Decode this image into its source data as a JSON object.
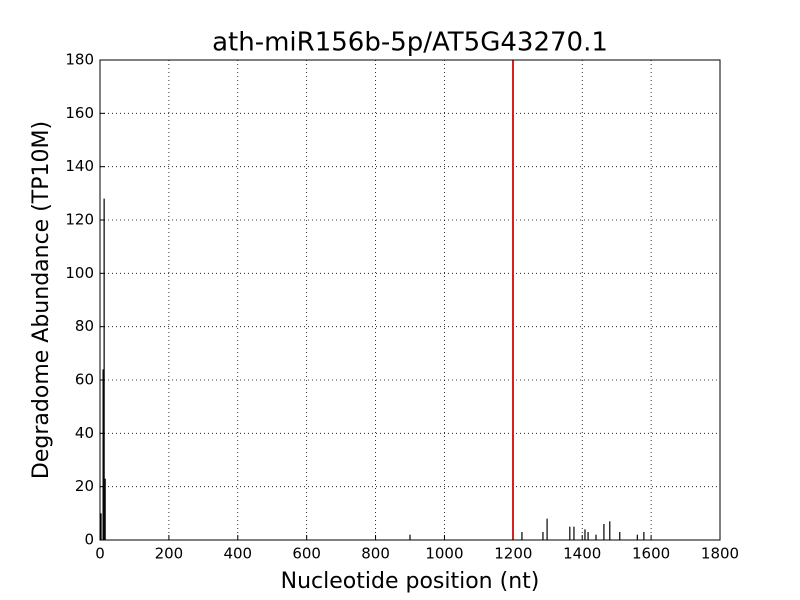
{
  "chart_data": {
    "type": "stem",
    "title": "ath-miR156b-5p/AT5G43270.1",
    "x_label": "Nucleotide position (nt)",
    "y_label": "Degradome Abundance (TP10M)",
    "x": [
      3,
      9,
      12,
      15,
      900,
      1225,
      1286,
      1298,
      1364,
      1376,
      1408,
      1417,
      1440,
      1463,
      1480,
      1509,
      1560,
      1579
    ],
    "values": [
      10,
      64,
      128,
      23,
      2,
      3,
      3,
      8,
      5,
      5,
      4,
      3,
      2,
      6,
      7,
      3,
      2,
      3
    ],
    "color": "#000000",
    "vline": 1199,
    "vline_color": "#d62020",
    "xlim": [
      0,
      1800
    ],
    "xticks": [
      0,
      200,
      400,
      600,
      800,
      1000,
      1200,
      1400,
      1600,
      1800
    ],
    "ylim": [
      0,
      180
    ],
    "yticks": [
      0,
      20,
      40,
      60,
      80,
      100,
      120,
      140,
      160,
      180
    ],
    "grid": true
  }
}
